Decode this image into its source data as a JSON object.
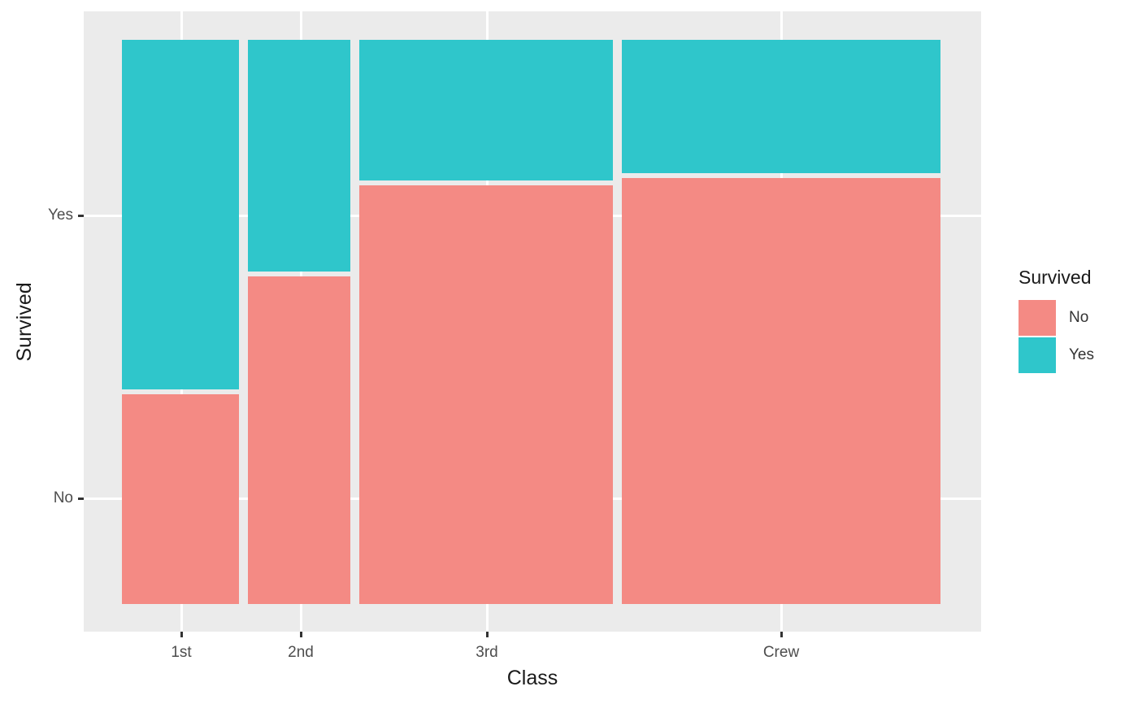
{
  "figure": {
    "background": "#FFFFFF",
    "panel_background": "#EBEBEB",
    "gridline_color": "#FFFFFF",
    "tick_color": "#333333",
    "tick_label_color": "#4D4D4D",
    "axis_title_color": "#1A1A1A"
  },
  "axes": {
    "x_title": "Class",
    "y_title": "Survived",
    "x_tick_labels": [
      "1st",
      "2nd",
      "3rd",
      "Crew"
    ],
    "y_tick_labels": [
      "Yes",
      "No"
    ]
  },
  "legend": {
    "title": "Survived",
    "entries": [
      {
        "label": "No",
        "color": "#F48A84"
      },
      {
        "label": "Yes",
        "color": "#2FC6CB"
      }
    ]
  },
  "chart_data": {
    "type": "mosaic",
    "title": "",
    "xlabel": "Class",
    "ylabel": "Survived",
    "categories": [
      "1st",
      "2nd",
      "3rd",
      "Crew"
    ],
    "column_width_fractions": [
      0.148,
      0.129,
      0.321,
      0.402
    ],
    "series": [
      {
        "name": "No",
        "fraction_within_class": [
          0.375,
          0.586,
          0.748,
          0.761
        ]
      },
      {
        "name": "Yes",
        "fraction_within_class": [
          0.625,
          0.414,
          0.252,
          0.239
        ]
      }
    ],
    "colors": {
      "No": "#F48A84",
      "Yes": "#2FC6CB"
    },
    "y_axis_note": "y tick 'Yes' aligned to center of 1st-class Yes segment, 'No' to center of 1st-class No segment",
    "legend_position": "right",
    "grid": true
  }
}
